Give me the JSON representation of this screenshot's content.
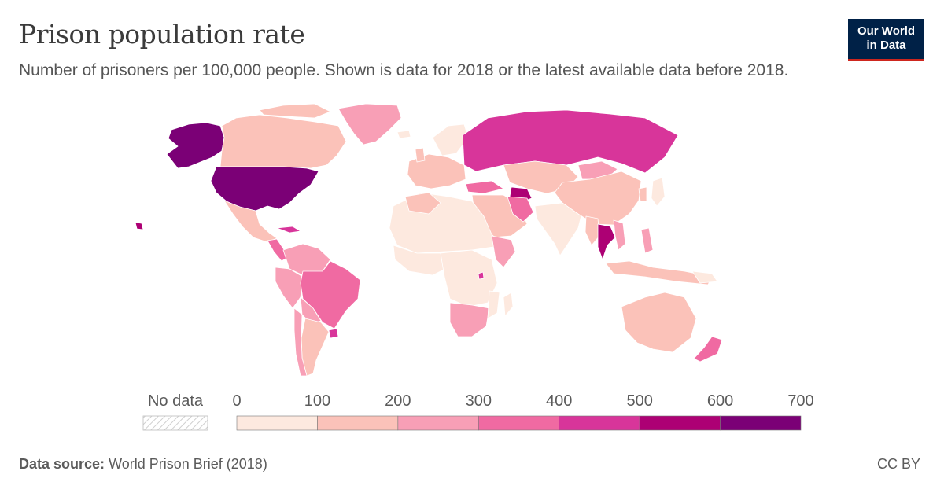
{
  "header": {
    "title": "Prison population rate",
    "subtitle": "Number of prisoners per 100,000 people. Shown is data for 2018 or the latest available data before 2018."
  },
  "logo": {
    "line1": "Our World",
    "line2": "in Data",
    "bg": "#002147",
    "accent": "#ce261e"
  },
  "legend": {
    "no_data_label": "No data",
    "ticks": [
      "0",
      "100",
      "200",
      "300",
      "400",
      "500",
      "600",
      "700"
    ],
    "bins": [
      {
        "min": 0,
        "max": 100,
        "color": "#fde9df"
      },
      {
        "min": 100,
        "max": 200,
        "color": "#fbc2b9"
      },
      {
        "min": 200,
        "max": 300,
        "color": "#f89fb6"
      },
      {
        "min": 300,
        "max": 400,
        "color": "#f06aa2"
      },
      {
        "min": 400,
        "max": 500,
        "color": "#d8359a"
      },
      {
        "min": 500,
        "max": 600,
        "color": "#ad0074"
      },
      {
        "min": 600,
        "max": 700,
        "color": "#7b0076"
      }
    ]
  },
  "footer": {
    "source_label": "Data source:",
    "source_text": "World Prison Brief (2018)",
    "license": "CC BY"
  }
}
